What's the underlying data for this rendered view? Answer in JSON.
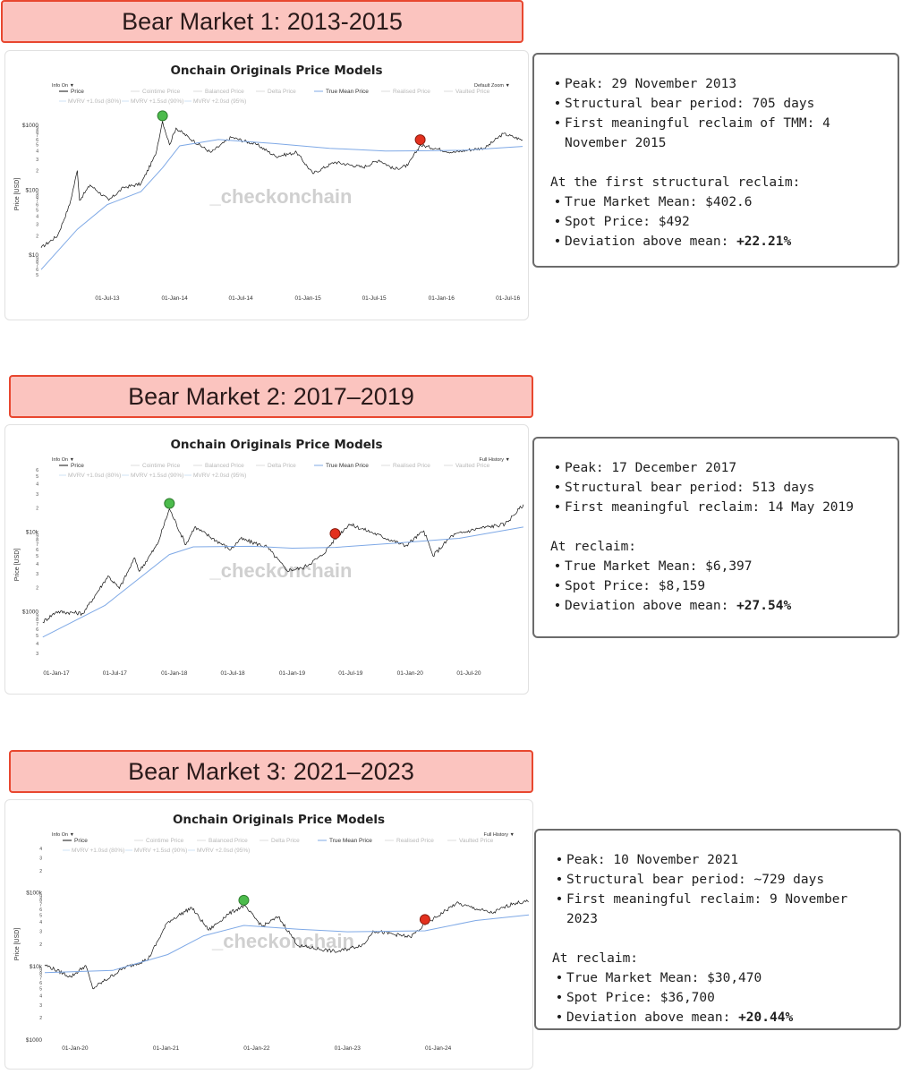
{
  "sections": [
    {
      "header": "Bear Market 1: 2013-2015",
      "chart": {
        "title": "Onchain Originals Price Models",
        "info_label": "Info On",
        "zoom_label": "Default Zoom",
        "ylabel": "Price [USD]",
        "watermark": "_checkonchain",
        "legend_row1": [
          "Price",
          "Cointime Price",
          "Balanced Price",
          "Delta Price",
          "True Mean Price",
          "Realised Price",
          "Vaulted Price"
        ],
        "legend_row2": [
          "MVRV +1.0sd (80%)",
          "MVRV +1.5sd (90%)",
          "MVRV +2.0sd (95%)"
        ],
        "y_major": [
          "$1000",
          "$100",
          "$10"
        ],
        "x_ticks": [
          "01-Jul-13",
          "01-Jan-14",
          "01-Jul-14",
          "01-Jan-15",
          "01-Jul-15",
          "01-Jan-16",
          "01-Jul-16"
        ]
      },
      "info": {
        "bullets1": [
          "Peak: 29 November 2013",
          "Structural bear period: 705 days",
          "First meaningful reclaim of TMM: 4 November 2015"
        ],
        "subheading": "At the first structural reclaim:",
        "bullets2": [
          "True Market Mean: $402.6",
          "Spot Price: $492"
        ],
        "deviation_label": "Deviation above mean: ",
        "deviation_value": "+22.21%"
      }
    },
    {
      "header": "Bear Market 2: 2017–2019",
      "chart": {
        "title": "Onchain Originals Price Models",
        "info_label": "Info On",
        "zoom_label": "Full History",
        "ylabel": "Price [USD]",
        "watermark": "_checkonchain",
        "legend_row1": [
          "Price",
          "Cointime Price",
          "Balanced Price",
          "Delta Price",
          "True Mean Price",
          "Realised Price",
          "Vaulted Price"
        ],
        "legend_row2": [
          "MVRV +1.0sd (80%)",
          "MVRV +1.5sd (90%)",
          "MVRV +2.0sd (95%)"
        ],
        "y_major": [
          "$10k",
          "$1000"
        ],
        "x_ticks": [
          "01-Jan-17",
          "01-Jul-17",
          "01-Jan-18",
          "01-Jul-18",
          "01-Jan-19",
          "01-Jul-19",
          "01-Jan-20",
          "01-Jul-20"
        ]
      },
      "info": {
        "bullets1": [
          "Peak: 17 December 2017",
          "Structural bear period: 513 days",
          "First meaningful reclaim: 14 May 2019"
        ],
        "subheading": "At reclaim:",
        "bullets2": [
          "True Market Mean: $6,397",
          "Spot Price: $8,159"
        ],
        "deviation_label": "Deviation above mean: ",
        "deviation_value": "+27.54%"
      }
    },
    {
      "header": "Bear Market 3: 2021–2023",
      "chart": {
        "title": "Onchain Originals Price Models",
        "info_label": "Info On",
        "zoom_label": "Full History",
        "ylabel": "Price [USD]",
        "watermark": "_checkonchain",
        "legend_row1": [
          "Price",
          "Cointime Price",
          "Balanced Price",
          "Delta Price",
          "True Mean Price",
          "Realised Price",
          "Vaulted Price"
        ],
        "legend_row2": [
          "MVRV +1.0sd (80%)",
          "MVRV +1.5sd (90%)",
          "MVRV +2.0sd (95%)"
        ],
        "y_major": [
          "$100k",
          "$10k",
          "$1000"
        ],
        "x_ticks": [
          "01-Jan-20",
          "01-Jan-21",
          "01-Jan-22",
          "01-Jan-23",
          "01-Jan-24"
        ]
      },
      "info": {
        "bullets1": [
          "Peak: 10 November 2021",
          "Structural bear period: ~729 days",
          "First meaningful reclaim: 9 November 2023"
        ],
        "subheading": "At reclaim:",
        "bullets2": [
          "True Market Mean: $30,470",
          "Spot Price: $36,700"
        ],
        "deviation_label": "Deviation above mean: ",
        "deviation_value": "+20.44%"
      }
    }
  ],
  "colors": {
    "price_line": "#111111",
    "true_mean_line": "#7fa9e6",
    "peak_marker": "#4cbb4c",
    "reclaim_marker": "#e3301e",
    "header_fill": "#fbc4bf",
    "header_border": "#e8472f"
  },
  "chart_data": [
    {
      "type": "line",
      "title": "Onchain Originals Price Models",
      "ylabel": "Price [USD]",
      "yscale": "log",
      "ylim": [
        5,
        1500
      ],
      "x_range": [
        "2013-01-01",
        "2016-08-15"
      ],
      "series": [
        {
          "name": "Price",
          "points": [
            [
              "2013-01-01",
              13
            ],
            [
              "2013-02-15",
              20
            ],
            [
              "2013-03-20",
              60
            ],
            [
              "2013-04-10",
              200
            ],
            [
              "2013-04-16",
              70
            ],
            [
              "2013-05-15",
              120
            ],
            [
              "2013-07-05",
              70
            ],
            [
              "2013-08-15",
              110
            ],
            [
              "2013-10-01",
              125
            ],
            [
              "2013-11-10",
              350
            ],
            [
              "2013-11-29",
              1150
            ],
            [
              "2013-12-18",
              500
            ],
            [
              "2014-01-05",
              900
            ],
            [
              "2014-02-20",
              580
            ],
            [
              "2014-04-10",
              380
            ],
            [
              "2014-06-05",
              650
            ],
            [
              "2014-08-15",
              500
            ],
            [
              "2014-10-05",
              330
            ],
            [
              "2014-12-01",
              380
            ],
            [
              "2015-01-14",
              180
            ],
            [
              "2015-03-15",
              270
            ],
            [
              "2015-06-01",
              225
            ],
            [
              "2015-07-15",
              290
            ],
            [
              "2015-08-25",
              210
            ],
            [
              "2015-10-01",
              240
            ],
            [
              "2015-11-04",
              492
            ],
            [
              "2015-12-15",
              440
            ],
            [
              "2016-02-01",
              380
            ],
            [
              "2016-03-15",
              415
            ],
            [
              "2016-05-01",
              450
            ],
            [
              "2016-06-18",
              740
            ],
            [
              "2016-07-15",
              660
            ],
            [
              "2016-08-10",
              590
            ]
          ]
        },
        {
          "name": "True Mean Price",
          "points": [
            [
              "2013-01-01",
              6
            ],
            [
              "2013-04-10",
              25
            ],
            [
              "2013-07-01",
              60
            ],
            [
              "2013-10-01",
              95
            ],
            [
              "2013-11-29",
              220
            ],
            [
              "2014-01-15",
              480
            ],
            [
              "2014-05-01",
              600
            ],
            [
              "2014-10-01",
              520
            ],
            [
              "2015-03-01",
              440
            ],
            [
              "2015-08-01",
              400
            ],
            [
              "2015-11-04",
              402.6
            ],
            [
              "2016-03-01",
              410
            ],
            [
              "2016-08-10",
              470
            ]
          ]
        }
      ],
      "markers": [
        {
          "label": "peak",
          "x": "2013-11-29",
          "y": 1150
        },
        {
          "label": "reclaim",
          "x": "2015-11-04",
          "y": 492
        }
      ]
    },
    {
      "type": "line",
      "title": "Onchain Originals Price Models",
      "ylabel": "Price [USD]",
      "yscale": "log",
      "ylim": [
        250,
        60000
      ],
      "x_range": [
        "2016-11-15",
        "2020-12-20"
      ],
      "series": [
        {
          "name": "Price",
          "points": [
            [
              "2016-11-20",
              740
            ],
            [
              "2017-01-01",
              1000
            ],
            [
              "2017-03-25",
              950
            ],
            [
              "2017-06-10",
              2800
            ],
            [
              "2017-07-15",
              1950
            ],
            [
              "2017-09-01",
              4700
            ],
            [
              "2017-09-15",
              3200
            ],
            [
              "2017-11-10",
              7000
            ],
            [
              "2017-12-17",
              19500
            ],
            [
              "2018-02-06",
              6900
            ],
            [
              "2018-03-05",
              11500
            ],
            [
              "2018-06-25",
              6000
            ],
            [
              "2018-07-25",
              8200
            ],
            [
              "2018-10-15",
              6500
            ],
            [
              "2018-12-15",
              3300
            ],
            [
              "2019-02-01",
              3500
            ],
            [
              "2019-04-02",
              5000
            ],
            [
              "2019-05-14",
              8159
            ],
            [
              "2019-06-26",
              12500
            ],
            [
              "2019-09-01",
              10000
            ],
            [
              "2019-12-18",
              6700
            ],
            [
              "2020-02-13",
              10300
            ],
            [
              "2020-03-12",
              5000
            ],
            [
              "2020-05-10",
              9000
            ],
            [
              "2020-07-27",
              11000
            ],
            [
              "2020-10-21",
              12500
            ],
            [
              "2020-12-17",
              22000
            ]
          ]
        },
        {
          "name": "True Mean Price",
          "points": [
            [
              "2016-11-20",
              480
            ],
            [
              "2017-06-01",
              1200
            ],
            [
              "2017-12-17",
              5200
            ],
            [
              "2018-03-01",
              6500
            ],
            [
              "2018-09-01",
              6600
            ],
            [
              "2019-01-01",
              6250
            ],
            [
              "2019-05-14",
              6397
            ],
            [
              "2019-12-01",
              7300
            ],
            [
              "2020-06-01",
              8300
            ],
            [
              "2020-12-17",
              11500
            ]
          ]
        }
      ],
      "markers": [
        {
          "label": "peak",
          "x": "2017-12-17",
          "y": 19500
        },
        {
          "label": "reclaim",
          "x": "2019-05-14",
          "y": 8159
        }
      ]
    },
    {
      "type": "line",
      "title": "Onchain Originals Price Models",
      "ylabel": "Price [USD]",
      "yscale": "log",
      "ylim": [
        1000,
        400000
      ],
      "x_range": [
        "2019-09-01",
        "2024-12-31"
      ],
      "series": [
        {
          "name": "Price",
          "points": [
            [
              "2019-09-01",
              10500
            ],
            [
              "2019-12-15",
              7200
            ],
            [
              "2020-02-13",
              10300
            ],
            [
              "2020-03-12",
              5000
            ],
            [
              "2020-07-15",
              9500
            ],
            [
              "2020-10-21",
              12500
            ],
            [
              "2021-01-08",
              40000
            ],
            [
              "2021-04-14",
              63000
            ],
            [
              "2021-06-22",
              31000
            ],
            [
              "2021-09-07",
              51000
            ],
            [
              "2021-11-10",
              67000
            ],
            [
              "2022-01-24",
              35000
            ],
            [
              "2022-03-29",
              47000
            ],
            [
              "2022-06-18",
              19000
            ],
            [
              "2022-11-21",
              15800
            ],
            [
              "2023-03-10",
              20000
            ],
            [
              "2023-04-14",
              30500
            ],
            [
              "2023-09-11",
              25000
            ],
            [
              "2023-11-09",
              36700
            ],
            [
              "2024-03-14",
              72000
            ],
            [
              "2024-08-05",
              53000
            ],
            [
              "2024-10-29",
              72000
            ],
            [
              "2024-12-31",
              76000
            ]
          ]
        },
        {
          "name": "True Mean Price",
          "points": [
            [
              "2019-09-01",
              8200
            ],
            [
              "2020-06-01",
              8800
            ],
            [
              "2021-01-08",
              14500
            ],
            [
              "2021-06-01",
              26000
            ],
            [
              "2021-11-10",
              36000
            ],
            [
              "2022-06-18",
              32000
            ],
            [
              "2023-01-01",
              29500
            ],
            [
              "2023-11-09",
              30470
            ],
            [
              "2024-06-01",
              42000
            ],
            [
              "2024-12-31",
              50000
            ]
          ]
        }
      ],
      "markers": [
        {
          "label": "peak",
          "x": "2021-11-10",
          "y": 67000
        },
        {
          "label": "reclaim",
          "x": "2023-11-09",
          "y": 36700
        }
      ]
    }
  ]
}
